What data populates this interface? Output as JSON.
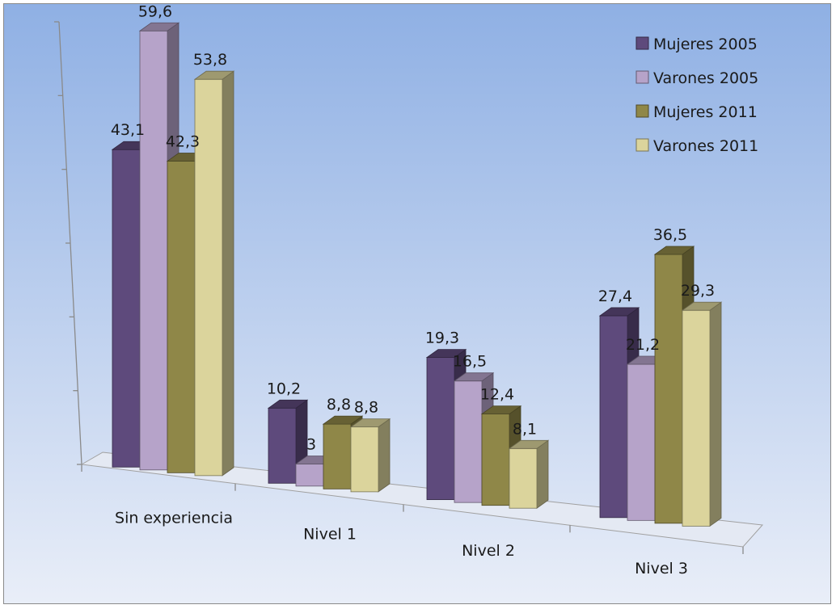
{
  "chart_data": {
    "type": "bar",
    "categories": [
      "Sin experiencia",
      "Nivel 1",
      "Nivel 2",
      "Nivel 3"
    ],
    "series": [
      {
        "name": "Mujeres 2005",
        "values": [
          43.1,
          10.2,
          19.3,
          27.4
        ],
        "labels": [
          "43,1",
          "10,2",
          "19,3",
          "27,4"
        ],
        "color": "#5e4a7c"
      },
      {
        "name": "Varones 2005",
        "values": [
          59.6,
          3,
          16.5,
          21.2
        ],
        "labels": [
          "59,6",
          "3",
          "16,5",
          "21,2"
        ],
        "color": "#b6a3c9"
      },
      {
        "name": "Mujeres 2011",
        "values": [
          42.3,
          8.8,
          12.4,
          36.5
        ],
        "labels": [
          "42,3",
          "8,8",
          "12,4",
          "36,5"
        ],
        "color": "#8f8748"
      },
      {
        "name": "Varones 2011",
        "values": [
          53.8,
          8.8,
          8.1,
          29.3
        ],
        "labels": [
          "53,8",
          "8,8",
          "8,1",
          "29,3"
        ],
        "color": "#dbd49c"
      }
    ],
    "ylim": [
      0,
      60
    ],
    "legend_position": "top-right",
    "grid": false,
    "style": "3d-clustered-column",
    "background_gradient": [
      "#8fb0e4",
      "#e9eef8"
    ]
  }
}
